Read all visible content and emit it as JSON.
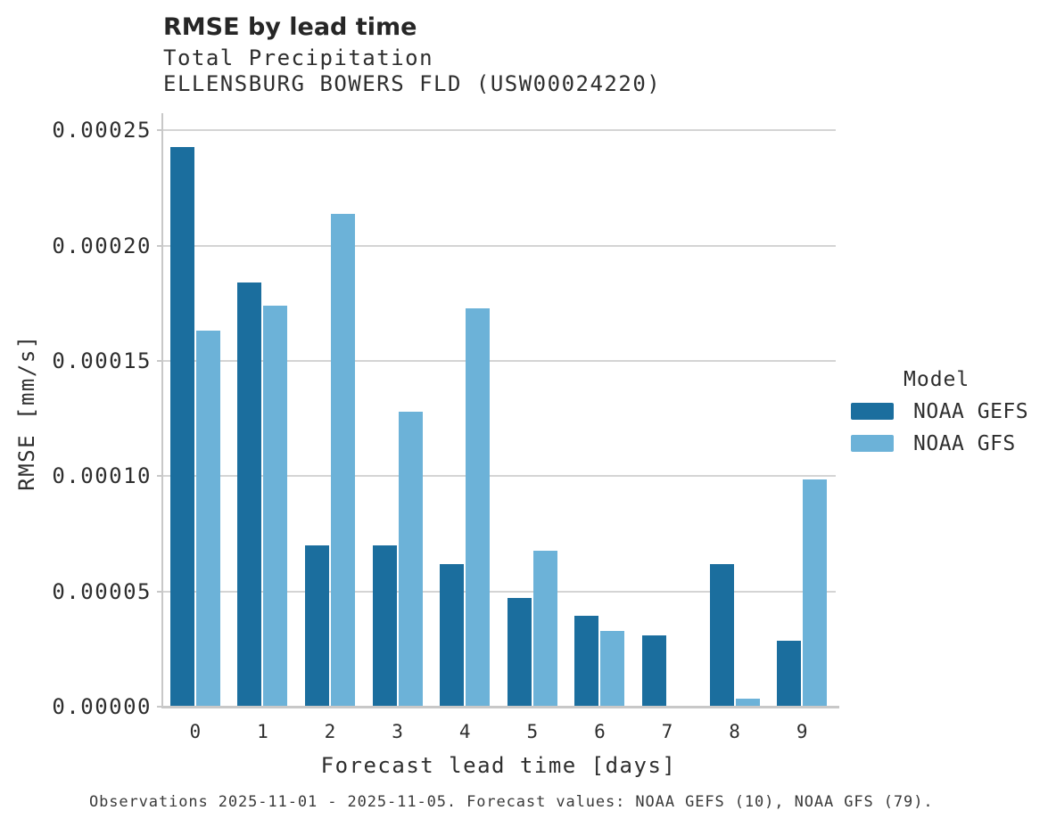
{
  "header": {
    "title": "RMSE by lead time",
    "subtitle1": "Total Precipitation",
    "subtitle2": "ELLENSBURG BOWERS FLD (USW00024220)"
  },
  "chart_data": {
    "type": "bar",
    "title": "RMSE by lead time",
    "subtitle": [
      "Total Precipitation",
      "ELLENSBURG BOWERS FLD (USW00024220)"
    ],
    "categories": [
      "0",
      "1",
      "2",
      "3",
      "4",
      "5",
      "6",
      "7",
      "8",
      "9"
    ],
    "series": [
      {
        "name": "NOAA GEFS",
        "color": "#1b6e9e",
        "values": [
          0.000243,
          0.000184,
          7e-05,
          7e-05,
          6.2e-05,
          4.7e-05,
          3.95e-05,
          3.1e-05,
          6.2e-05,
          2.85e-05
        ]
      },
      {
        "name": "NOAA GFS",
        "color": "#6cb2d8",
        "values": [
          0.000163,
          0.000174,
          0.000214,
          0.000128,
          0.000173,
          6.75e-05,
          3.3e-05,
          0,
          3.5e-06,
          9.85e-05
        ]
      }
    ],
    "xlabel": "Forecast lead time [days]",
    "ylabel": "RMSE [mm/s]",
    "ylim": [
      0,
      0.0002575
    ],
    "yticks": [
      0,
      5e-05,
      0.0001,
      0.00015,
      0.0002,
      0.00025
    ],
    "ytick_labels": [
      "0.00000",
      "0.00005",
      "0.00010",
      "0.00015",
      "0.00020",
      "0.00025"
    ],
    "grid": true,
    "legend_position": "right"
  },
  "legend": {
    "title": "Model",
    "entries": [
      {
        "label": "NOAA GEFS",
        "color": "#1b6e9e"
      },
      {
        "label": "NOAA GFS",
        "color": "#6cb2d8"
      }
    ]
  },
  "footnote": "Observations 2025-11-01 - 2025-11-05. Forecast values: NOAA GEFS (10), NOAA GFS (79).",
  "colors": {
    "gefs_bar": "#1b6e9e",
    "gfs_bar": "#6cb2d8",
    "gridline": "#d4d4d4",
    "spine": "#c8c8c8",
    "title_text": "#262626",
    "label_text": "#2e2e2e",
    "footnote_text": "#3a3a3a",
    "background": "#ffffff"
  }
}
